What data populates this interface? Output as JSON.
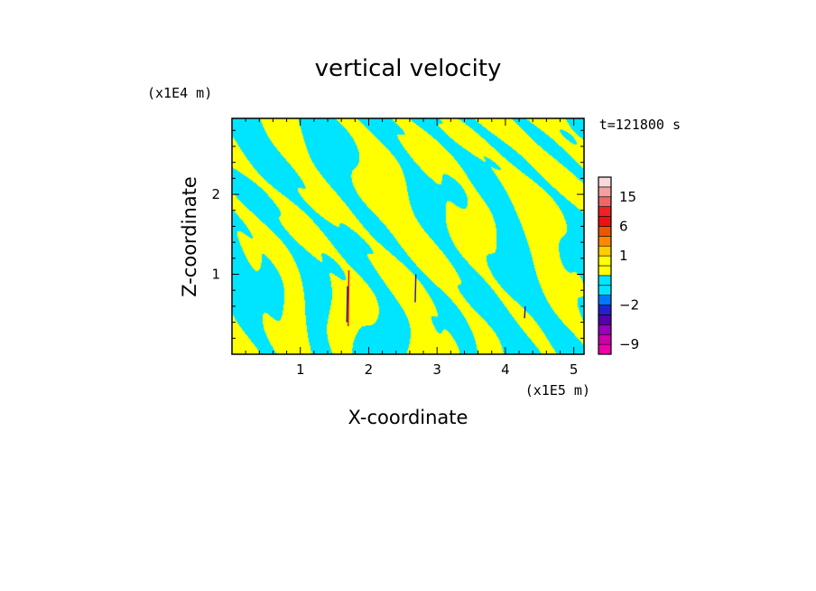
{
  "chart_data": {
    "type": "heatmap",
    "title": "vertical velocity",
    "xlabel": "X-coordinate",
    "ylabel": "Z-coordinate",
    "x_unit": "(x1E5 m)",
    "y_unit": "(x1E4 m)",
    "time_label": "t=121800 s",
    "xlim": [
      0,
      5.15
    ],
    "ylim": [
      0,
      2.95
    ],
    "x_ticks": [
      1,
      2,
      3,
      4,
      5
    ],
    "x_tick_labels": [
      "1",
      "2",
      "3",
      "4",
      "5"
    ],
    "y_ticks": [
      1,
      2
    ],
    "y_tick_labels": [
      "1",
      "2"
    ],
    "field_colors": {
      "positive": "#ffff00",
      "negative": "#00e5ff",
      "strong_positive": "#ee1111",
      "strong_negative": "#3322aa"
    },
    "colorbar": {
      "levels": [
        -12,
        -9,
        -6,
        -4,
        -3,
        -2,
        -1,
        -0.5,
        0,
        0.5,
        1,
        2,
        4,
        6,
        9,
        12,
        15,
        20,
        25
      ],
      "colors": [
        "#ee00aa",
        "#cc00aa",
        "#9900bb",
        "#5500aa",
        "#2222cc",
        "#0077ff",
        "#00e5ff",
        "#00e5ff",
        "#ffff00",
        "#ffff00",
        "#ffcc00",
        "#ff8800",
        "#ee5500",
        "#ee1111",
        "#ee2222",
        "#ee6666",
        "#f4a0a0",
        "#f8d8d8"
      ],
      "tick_values": [
        15,
        6,
        1,
        -2,
        -9
      ],
      "tick_labels": [
        "15",
        "6",
        "1",
        "−2",
        "−9"
      ]
    }
  }
}
